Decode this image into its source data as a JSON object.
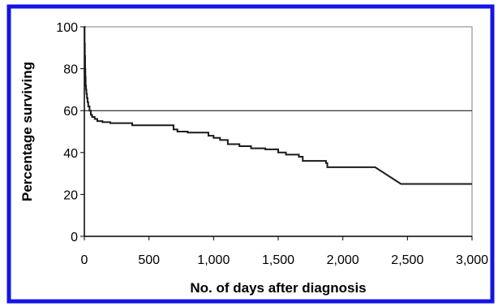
{
  "colors": {
    "frame_border": "#1414e6",
    "plot_border": "#808080",
    "line": "#1a1a1a",
    "background": "#ffffff"
  },
  "chart_data": {
    "type": "line",
    "title": "",
    "xlabel": "No. of days after diagnosis",
    "ylabel": "Percentage surviving",
    "xlim": [
      0,
      3000
    ],
    "ylim": [
      0,
      100
    ],
    "x_ticks": [
      0,
      500,
      1000,
      1500,
      2000,
      2500,
      3000
    ],
    "x_tick_labels": [
      "0",
      "500",
      "1,000",
      "1,500",
      "2,000",
      "2,500",
      "3,000"
    ],
    "y_ticks": [
      0,
      20,
      40,
      60,
      80,
      100
    ],
    "y_tick_labels": [
      "0",
      "20",
      "40",
      "60",
      "80",
      "100"
    ],
    "gridlines_y": [
      60
    ],
    "legend": "none",
    "series": [
      {
        "style": "step",
        "x": [
          0,
          2,
          4,
          6,
          8,
          10,
          13,
          16,
          20,
          25,
          30,
          40,
          50,
          60,
          80,
          100,
          140,
          200,
          280,
          370,
          500,
          690,
          720,
          800,
          960,
          1000,
          1050,
          1110,
          1200,
          1290,
          1310,
          1400,
          1500,
          1560,
          1660,
          1690,
          1860,
          1870,
          1880,
          2000,
          2250,
          2450,
          3000
        ],
        "y": [
          100,
          92,
          86,
          80,
          76,
          72,
          70,
          68,
          66,
          64,
          62,
          60,
          58,
          57,
          56,
          55,
          54.5,
          54,
          54,
          53,
          53,
          51,
          50,
          49.5,
          48,
          47,
          46,
          44,
          43,
          42,
          42,
          41.5,
          40,
          39,
          38,
          36,
          36,
          35,
          33,
          33,
          33,
          25,
          25
        ]
      }
    ]
  }
}
